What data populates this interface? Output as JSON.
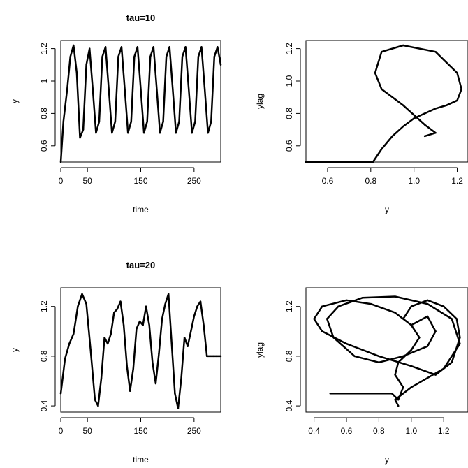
{
  "chart_data": [
    {
      "type": "line",
      "title": "tau=10",
      "xlabel": "time",
      "ylabel": "y",
      "xlim": [
        0,
        300
      ],
      "ylim": [
        0.5,
        1.25
      ],
      "xticks": [
        0,
        50,
        150,
        250
      ],
      "yticks": [
        0.6,
        0.8,
        1.0,
        1.2
      ],
      "x": [
        0,
        5,
        12,
        18,
        24,
        30,
        36,
        42,
        48,
        54,
        60,
        66,
        72,
        78,
        84,
        90,
        96,
        102,
        108,
        114,
        120,
        126,
        132,
        138,
        144,
        150,
        156,
        162,
        168,
        174,
        180,
        186,
        192,
        198,
        204,
        210,
        216,
        222,
        228,
        234,
        240,
        246,
        252,
        258,
        264,
        270,
        276,
        282,
        288,
        294,
        300
      ],
      "y": [
        0.5,
        0.75,
        0.95,
        1.15,
        1.22,
        1.05,
        0.65,
        0.7,
        1.1,
        1.2,
        0.95,
        0.68,
        0.75,
        1.15,
        1.21,
        0.95,
        0.68,
        0.75,
        1.15,
        1.21,
        0.95,
        0.68,
        0.75,
        1.15,
        1.21,
        0.95,
        0.68,
        0.75,
        1.15,
        1.21,
        0.95,
        0.68,
        0.75,
        1.15,
        1.21,
        0.95,
        0.68,
        0.75,
        1.15,
        1.21,
        0.95,
        0.68,
        0.75,
        1.15,
        1.21,
        0.95,
        0.68,
        0.75,
        1.15,
        1.21,
        1.1
      ]
    },
    {
      "type": "line",
      "title": "",
      "xlabel": "y",
      "ylabel": "ylag",
      "xlim": [
        0.5,
        1.25
      ],
      "ylim": [
        0.5,
        1.25
      ],
      "xticks": [
        0.6,
        0.8,
        1.0,
        1.2
      ],
      "yticks": [
        0.6,
        0.8,
        1.0,
        1.2
      ],
      "x": [
        0.5,
        0.6,
        0.7,
        0.8,
        0.81,
        0.85,
        0.9,
        0.95,
        1.0,
        1.05,
        1.1,
        1.15,
        1.2,
        1.22,
        1.2,
        1.1,
        0.95,
        0.85,
        0.82,
        0.85,
        0.95,
        1.05,
        1.1,
        1.05
      ],
      "y": [
        0.5,
        0.5,
        0.5,
        0.5,
        0.5,
        0.58,
        0.66,
        0.72,
        0.77,
        0.8,
        0.83,
        0.85,
        0.88,
        0.95,
        1.05,
        1.18,
        1.22,
        1.18,
        1.05,
        0.95,
        0.85,
        0.73,
        0.68,
        0.66
      ]
    },
    {
      "type": "line",
      "title": "tau=20",
      "xlabel": "time",
      "ylabel": "y",
      "xlim": [
        0,
        300
      ],
      "ylim": [
        0.35,
        1.35
      ],
      "xticks": [
        0,
        50,
        150,
        250
      ],
      "yticks": [
        0.4,
        0.8,
        1.2
      ],
      "x": [
        0,
        8,
        16,
        24,
        32,
        40,
        48,
        56,
        64,
        70,
        76,
        82,
        88,
        94,
        100,
        106,
        112,
        118,
        124,
        130,
        136,
        142,
        148,
        154,
        160,
        166,
        172,
        178,
        184,
        190,
        196,
        202,
        208,
        214,
        220,
        226,
        232,
        238,
        244,
        250,
        256,
        262,
        268,
        274,
        280,
        286,
        292,
        300
      ],
      "y": [
        0.5,
        0.78,
        0.9,
        0.98,
        1.2,
        1.3,
        1.22,
        0.85,
        0.45,
        0.4,
        0.62,
        0.95,
        0.9,
        0.98,
        1.15,
        1.18,
        1.24,
        1.05,
        0.72,
        0.52,
        0.7,
        1.02,
        1.08,
        1.05,
        1.2,
        1.05,
        0.75,
        0.58,
        0.82,
        1.1,
        1.22,
        1.3,
        0.9,
        0.5,
        0.38,
        0.62,
        0.95,
        0.88,
        1.0,
        1.12,
        1.2,
        1.24,
        1.05,
        0.8,
        0.8,
        0.8,
        0.8,
        0.8
      ]
    },
    {
      "type": "line",
      "title": "",
      "xlabel": "y",
      "ylabel": "ylag",
      "xlim": [
        0.35,
        1.35
      ],
      "ylim": [
        0.35,
        1.35
      ],
      "xticks": [
        0.4,
        0.6,
        0.8,
        1.0,
        1.2
      ],
      "yticks": [
        0.4,
        0.8,
        1.2
      ],
      "x": [
        0.5,
        0.6,
        0.7,
        0.8,
        0.88,
        0.92,
        0.95,
        0.9,
        0.92,
        1.0,
        1.05,
        1.0,
        0.9,
        0.75,
        0.6,
        0.45,
        0.4,
        0.45,
        0.6,
        0.8,
        1.0,
        1.15,
        1.25,
        1.3,
        1.28,
        1.2,
        1.1,
        1.0,
        0.95,
        1.0,
        1.1,
        1.15,
        1.1,
        0.95,
        0.8,
        0.65,
        0.52,
        0.48,
        0.55,
        0.7,
        0.9,
        1.1,
        1.25,
        1.3,
        1.2,
        1.0,
        0.9,
        0.92
      ],
      "y": [
        0.5,
        0.5,
        0.5,
        0.5,
        0.5,
        0.45,
        0.55,
        0.65,
        0.75,
        0.85,
        0.95,
        1.05,
        1.15,
        1.22,
        1.25,
        1.2,
        1.1,
        1.0,
        0.9,
        0.8,
        0.72,
        0.65,
        0.75,
        0.95,
        1.1,
        1.2,
        1.25,
        1.2,
        1.1,
        1.05,
        1.12,
        1.0,
        0.88,
        0.8,
        0.75,
        0.8,
        0.95,
        1.1,
        1.2,
        1.27,
        1.28,
        1.22,
        1.1,
        0.9,
        0.7,
        0.55,
        0.45,
        0.4
      ]
    }
  ]
}
